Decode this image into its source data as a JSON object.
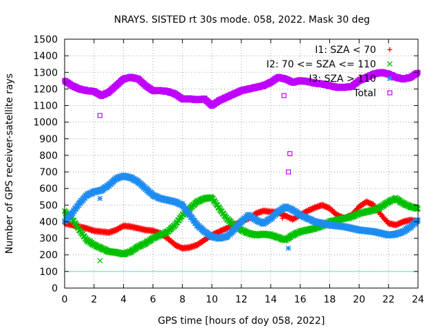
{
  "chart_data": {
    "type": "scatter",
    "title": "NRAYS. SISTED rt 30s mode. 058, 2022. Mask 30 deg",
    "xlabel": "GPS time [hours of doy 058, 2022]",
    "ylabel": "Number of GPS receiver-satellite rays",
    "xlim": [
      0,
      24
    ],
    "ylim": [
      0,
      1500
    ],
    "xticks": [
      0,
      2,
      4,
      6,
      8,
      10,
      12,
      14,
      16,
      18,
      20,
      22,
      24
    ],
    "yticks": [
      0,
      100,
      200,
      300,
      400,
      500,
      600,
      700,
      800,
      900,
      1000,
      1100,
      1200,
      1300,
      1400,
      1500
    ],
    "grid": true,
    "legend_position": "top-right",
    "reference_line": {
      "y": 100,
      "color": "#40e0e0"
    },
    "series": [
      {
        "name": "I1: SZA < 70",
        "marker": "+",
        "color": "#ff0000",
        "x": [
          0,
          0.5,
          1,
          1.5,
          2,
          2.5,
          3,
          3.5,
          4,
          4.5,
          5,
          5.5,
          6,
          6.5,
          7,
          7.5,
          8,
          8.5,
          9,
          9.5,
          10,
          10.5,
          11,
          11.5,
          12,
          12.5,
          13,
          13.5,
          14,
          14.5,
          15,
          15.5,
          16,
          16.5,
          17,
          17.5,
          18,
          18.5,
          19,
          19.5,
          20,
          20.5,
          21,
          21.5,
          22,
          22.5,
          23,
          23.5,
          24
        ],
        "values": [
          390,
          380,
          370,
          360,
          345,
          340,
          335,
          350,
          375,
          370,
          360,
          350,
          345,
          330,
          300,
          260,
          240,
          245,
          260,
          290,
          320,
          340,
          360,
          380,
          400,
          420,
          450,
          465,
          460,
          455,
          435,
          415,
          440,
          465,
          485,
          500,
          480,
          440,
          420,
          440,
          490,
          520,
          500,
          440,
          390,
          380,
          400,
          410,
          400
        ],
        "outliers": [
          {
            "x": 14.8,
            "y": 420
          }
        ]
      },
      {
        "name": "I2: 70 <= SZA <= 110",
        "marker": "x",
        "color": "#00c000",
        "x": [
          0,
          0.5,
          1,
          1.5,
          2,
          2.5,
          3,
          3.5,
          4,
          4.5,
          5,
          5.5,
          6,
          6.5,
          7,
          7.5,
          8,
          8.5,
          9,
          9.5,
          10,
          10.5,
          11,
          11.5,
          12,
          12.5,
          13,
          13.5,
          14,
          14.5,
          15,
          15.5,
          16,
          16.5,
          17,
          17.5,
          18,
          18.5,
          19,
          19.5,
          20,
          20.5,
          21,
          21.5,
          22,
          22.5,
          23,
          23.5,
          24
        ],
        "values": [
          460,
          420,
          350,
          290,
          260,
          240,
          220,
          215,
          205,
          220,
          250,
          270,
          300,
          320,
          340,
          380,
          440,
          480,
          520,
          540,
          545,
          480,
          420,
          380,
          350,
          330,
          320,
          325,
          320,
          305,
          290,
          320,
          340,
          350,
          360,
          375,
          400,
          410,
          420,
          430,
          450,
          460,
          470,
          490,
          520,
          540,
          510,
          490,
          480
        ],
        "outliers": [
          {
            "x": 2.4,
            "y": 165
          },
          {
            "x": 14.8,
            "y": 290
          }
        ]
      },
      {
        "name": "I3: SZA > 110",
        "marker": "*",
        "color": "#1e8cf0",
        "x": [
          0,
          0.5,
          1,
          1.5,
          2,
          2.5,
          3,
          3.5,
          4,
          4.5,
          5,
          5.5,
          6,
          6.5,
          7,
          7.5,
          8,
          8.5,
          9,
          9.5,
          10,
          10.5,
          11,
          11.5,
          12,
          12.5,
          13,
          13.5,
          14,
          14.5,
          15,
          15.5,
          16,
          16.5,
          17,
          17.5,
          18,
          18.5,
          19,
          19.5,
          20,
          20.5,
          21,
          21.5,
          22,
          22.5,
          23,
          23.5,
          24
        ],
        "values": [
          400,
          450,
          510,
          560,
          580,
          590,
          620,
          660,
          675,
          665,
          640,
          600,
          560,
          540,
          530,
          520,
          500,
          440,
          380,
          340,
          310,
          300,
          310,
          350,
          400,
          440,
          410,
          390,
          420,
          460,
          490,
          470,
          440,
          420,
          400,
          390,
          380,
          375,
          370,
          360,
          350,
          345,
          340,
          330,
          320,
          325,
          340,
          370,
          410
        ],
        "outliers": [
          {
            "x": 2.4,
            "y": 540
          },
          {
            "x": 15.2,
            "y": 240
          }
        ]
      },
      {
        "name": "Total",
        "marker": "square",
        "color": "#c000ff",
        "x": [
          0,
          0.5,
          1,
          1.5,
          2,
          2.5,
          3,
          3.5,
          4,
          4.5,
          5,
          5.5,
          6,
          6.5,
          7,
          7.5,
          8,
          8.5,
          9,
          9.5,
          10,
          10.5,
          11,
          11.5,
          12,
          12.5,
          13,
          13.5,
          14,
          14.5,
          15,
          15.5,
          16,
          16.5,
          17,
          17.5,
          18,
          18.5,
          19,
          19.5,
          20,
          20.5,
          21,
          21.5,
          22,
          22.5,
          23,
          23.5,
          24
        ],
        "values": [
          1250,
          1220,
          1200,
          1190,
          1185,
          1160,
          1180,
          1220,
          1260,
          1270,
          1260,
          1220,
          1190,
          1190,
          1185,
          1170,
          1140,
          1140,
          1135,
          1140,
          1100,
          1130,
          1150,
          1170,
          1190,
          1200,
          1210,
          1220,
          1240,
          1270,
          1260,
          1240,
          1250,
          1245,
          1235,
          1230,
          1220,
          1210,
          1210,
          1215,
          1250,
          1270,
          1290,
          1300,
          1290,
          1270,
          1260,
          1270,
          1300
        ],
        "outliers": [
          {
            "x": 2.4,
            "y": 1040
          },
          {
            "x": 14.9,
            "y": 1160
          },
          {
            "x": 15.3,
            "y": 810
          },
          {
            "x": 15.2,
            "y": 700
          }
        ]
      }
    ]
  }
}
